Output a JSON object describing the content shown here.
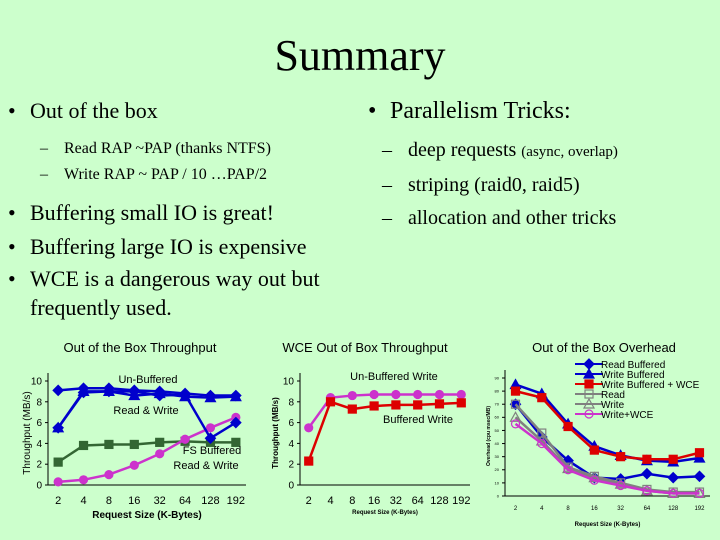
{
  "title": "Summary",
  "left": {
    "bullet1": "Out of the box",
    "sub": [
      "Read RAP ~PAP (thanks NTFS)",
      "Write RAP ~ PAP / 10 …PAP/2"
    ],
    "bullets": [
      "Buffering small IO is great!",
      "Buffering large IO is expensive",
      "WCE is a dangerous way out but frequently used."
    ]
  },
  "right": {
    "bullet1": "Parallelism Tricks:",
    "items": [
      {
        "main": "deep requests ",
        "note": "(async, overlap)"
      },
      {
        "main": "striping (raid0, raid5)",
        "note": ""
      },
      {
        "main": "allocation and other tricks",
        "note": ""
      }
    ]
  },
  "colors": {
    "background": "#ccffcc",
    "blue": "#0000cc",
    "red": "#dd0000",
    "magenta": "#cc33cc",
    "green": "#336633",
    "grey": "#808080"
  },
  "chart_data": [
    {
      "type": "line",
      "title": "Out of the Box Throughput",
      "ylabel": "Throughput (MB/s)",
      "xlabel": "Request Size (K-Bytes)",
      "categories": [
        "2",
        "4",
        "8",
        "16",
        "32",
        "64",
        "128",
        "192"
      ],
      "ylim": [
        0,
        10
      ],
      "yticks": [
        "0",
        "2",
        "4",
        "6",
        "8",
        "10"
      ],
      "annotations": [
        "Un-Buffered",
        "Read & Write",
        "FS Buffered",
        "Read & Write"
      ],
      "series": [
        {
          "values": [
            9.1,
            9.3,
            9.3,
            9.1,
            9.0,
            8.8,
            8.6,
            8.6
          ],
          "color": "#0000cc",
          "marker": "diamond"
        },
        {
          "values": [
            5.5,
            9.0,
            9.0,
            8.6,
            8.8,
            8.5,
            8.4,
            8.5
          ],
          "color": "#0000cc",
          "marker": "triangle"
        },
        {
          "values": [
            2.2,
            3.8,
            3.9,
            3.9,
            4.1,
            4.2,
            4.1,
            4.1
          ],
          "color": "#336633",
          "marker": "square"
        },
        {
          "values": [
            0.3,
            0.5,
            1.0,
            1.9,
            3.0,
            4.4,
            5.5,
            6.5
          ],
          "color": "#cc33cc",
          "marker": "circle"
        },
        {
          "values": [
            5.5,
            8.9,
            9.0,
            9.0,
            8.6,
            8.7,
            4.5,
            6.0
          ],
          "color": "#0000cc",
          "marker": "diamond"
        }
      ]
    },
    {
      "type": "line",
      "title": "WCE Out of Box Throughput",
      "ylabel": "Throughput (MB/s)",
      "xlabel": "Request Size (K-Bytes)",
      "categories": [
        "2",
        "4",
        "8",
        "16",
        "32",
        "64",
        "128",
        "192"
      ],
      "ylim": [
        0,
        10
      ],
      "yticks": [
        "0",
        "2",
        "4",
        "6",
        "8",
        "10"
      ],
      "annotations": [
        "Un-Buffered Write",
        "Buffered Write"
      ],
      "series": [
        {
          "values": [
            5.5,
            8.4,
            8.6,
            8.7,
            8.7,
            8.7,
            8.7,
            8.7
          ],
          "color": "#cc33cc",
          "marker": "circle"
        },
        {
          "values": [
            2.3,
            8.0,
            7.3,
            7.6,
            7.7,
            7.7,
            7.8,
            7.9
          ],
          "color": "#dd0000",
          "marker": "square"
        }
      ]
    },
    {
      "type": "line",
      "title": "Out of the Box Overhead",
      "ylabel": "Overhead (cpu msec/MB)",
      "xlabel": "Request Size (K-Bytes)",
      "categories": [
        "2",
        "4",
        "8",
        "16",
        "32",
        "64",
        "128",
        "192"
      ],
      "ylim": [
        0,
        90
      ],
      "yticks": [
        "0",
        "10",
        "20",
        "30",
        "40",
        "50",
        "60",
        "70",
        "80",
        "90"
      ],
      "legend": "top-right",
      "series": [
        {
          "name": "Read Buffered",
          "values": [
            70,
            45,
            27,
            14,
            13,
            17,
            14,
            15
          ],
          "color": "#0000cc",
          "marker": "diamond"
        },
        {
          "name": "Write Buffered",
          "values": [
            85,
            78,
            55,
            38,
            31,
            27,
            26,
            29
          ],
          "color": "#0000cc",
          "marker": "triangle"
        },
        {
          "name": "Write Buffered + WCE",
          "values": [
            80,
            75,
            53,
            35,
            30,
            28,
            28,
            33
          ],
          "color": "#dd0000",
          "marker": "square"
        },
        {
          "name": "Read",
          "values": [
            70,
            48,
            22,
            15,
            10,
            5,
            3,
            3
          ],
          "color": "#808080",
          "marker": "square-open"
        },
        {
          "name": "Write",
          "values": [
            60,
            42,
            21,
            14,
            9,
            4,
            2,
            2
          ],
          "color": "#808080",
          "marker": "triangle-open"
        },
        {
          "name": "Write+WCE",
          "values": [
            55,
            40,
            20,
            12,
            8,
            4,
            2,
            2
          ],
          "color": "#cc33cc",
          "marker": "circle-open"
        }
      ]
    }
  ]
}
